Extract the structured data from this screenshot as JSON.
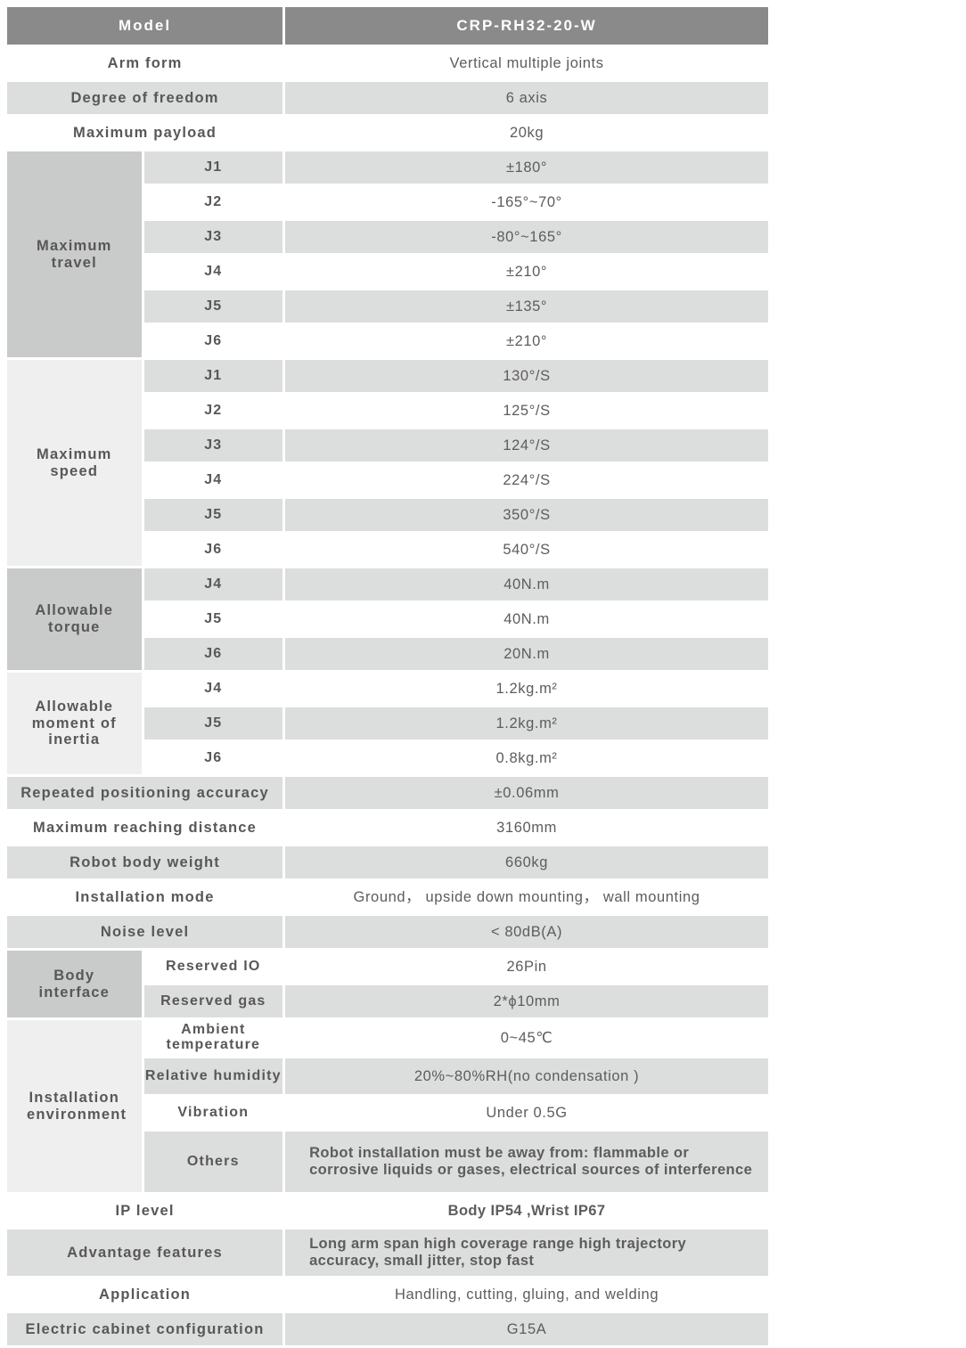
{
  "colors": {
    "header_bg": "#8a8a8a",
    "header_text": "#ffffff",
    "row_shade": "#dcdddd",
    "group_dark": "#c9caca",
    "group_light": "#efefef",
    "text": "#595757"
  },
  "specs": {
    "header": {
      "label": "Model",
      "value": "CRP-RH32-20-W"
    },
    "arm_form": {
      "label": "Arm form",
      "value": "Vertical multiple joints"
    },
    "degree_of_freedom": {
      "label": "Degree of freedom",
      "value": "6 axis"
    },
    "maximum_payload": {
      "label": "Maximum payload",
      "value": "20kg"
    },
    "maximum_travel": {
      "label": "Maximum travel",
      "joints": [
        {
          "label": "J1",
          "value": "±180°"
        },
        {
          "label": "J2",
          "value": "-165°~70°"
        },
        {
          "label": "J3",
          "value": "-80°~165°"
        },
        {
          "label": "J4",
          "value": "±210°"
        },
        {
          "label": "J5",
          "value": "±135°"
        },
        {
          "label": "J6",
          "value": "±210°"
        }
      ]
    },
    "maximum_speed": {
      "label": "Maximum speed",
      "joints": [
        {
          "label": "J1",
          "value": "130°/S"
        },
        {
          "label": "J2",
          "value": "125°/S"
        },
        {
          "label": "J3",
          "value": "124°/S"
        },
        {
          "label": "J4",
          "value": "224°/S"
        },
        {
          "label": "J5",
          "value": "350°/S"
        },
        {
          "label": "J6",
          "value": "540°/S"
        }
      ]
    },
    "allowable_torque": {
      "label": "Allowable torque",
      "joints": [
        {
          "label": "J4",
          "value": "40N.m"
        },
        {
          "label": "J5",
          "value": "40N.m"
        },
        {
          "label": "J6",
          "value": "20N.m"
        }
      ]
    },
    "allowable_inertia": {
      "label": "Allowable moment of inertia",
      "joints": [
        {
          "label": "J4",
          "value": "1.2kg.m²"
        },
        {
          "label": "J5",
          "value": "1.2kg.m²"
        },
        {
          "label": "J6",
          "value": "0.8kg.m²"
        }
      ]
    },
    "repeated_accuracy": {
      "label": "Repeated positioning accuracy",
      "value": "±0.06mm"
    },
    "reaching_distance": {
      "label": "Maximum reaching distance",
      "value": "3160mm"
    },
    "body_weight": {
      "label": "Robot body weight",
      "value": "660kg"
    },
    "installation_mode": {
      "label": "Installation mode",
      "value": "Ground， upside down mounting， wall mounting"
    },
    "noise_level": {
      "label": "Noise level",
      "value": "< 80dB(A)"
    },
    "body_interface": {
      "label": "Body interface",
      "items": [
        {
          "label": "Reserved IO",
          "value": "26Pin"
        },
        {
          "label": "Reserved gas",
          "value": "2*ϕ10mm"
        }
      ]
    },
    "installation_environment": {
      "label": "Installation environment",
      "items": [
        {
          "label": "Ambient temperature",
          "value": "0~45℃"
        },
        {
          "label": "Relative humidity",
          "value": "20%~80%RH(no condensation )"
        },
        {
          "label": "Vibration",
          "value": "Under 0.5G"
        },
        {
          "label": "Others",
          "value": "Robot installation must be away from: flammable or corrosive liquids or gases, electrical sources of interference"
        }
      ]
    },
    "ip_level": {
      "label": "IP level",
      "value": "Body IP54 ,Wrist IP67"
    },
    "advantage_features": {
      "label": "Advantage features",
      "value": "Long arm span high coverage range  high trajectory accuracy, small jitter, stop fast"
    },
    "application": {
      "label": "Application",
      "value": "Handling, cutting, gluing, and welding"
    },
    "electric_cabinet": {
      "label": "Electric cabinet configuration",
      "value": "G15A"
    }
  }
}
